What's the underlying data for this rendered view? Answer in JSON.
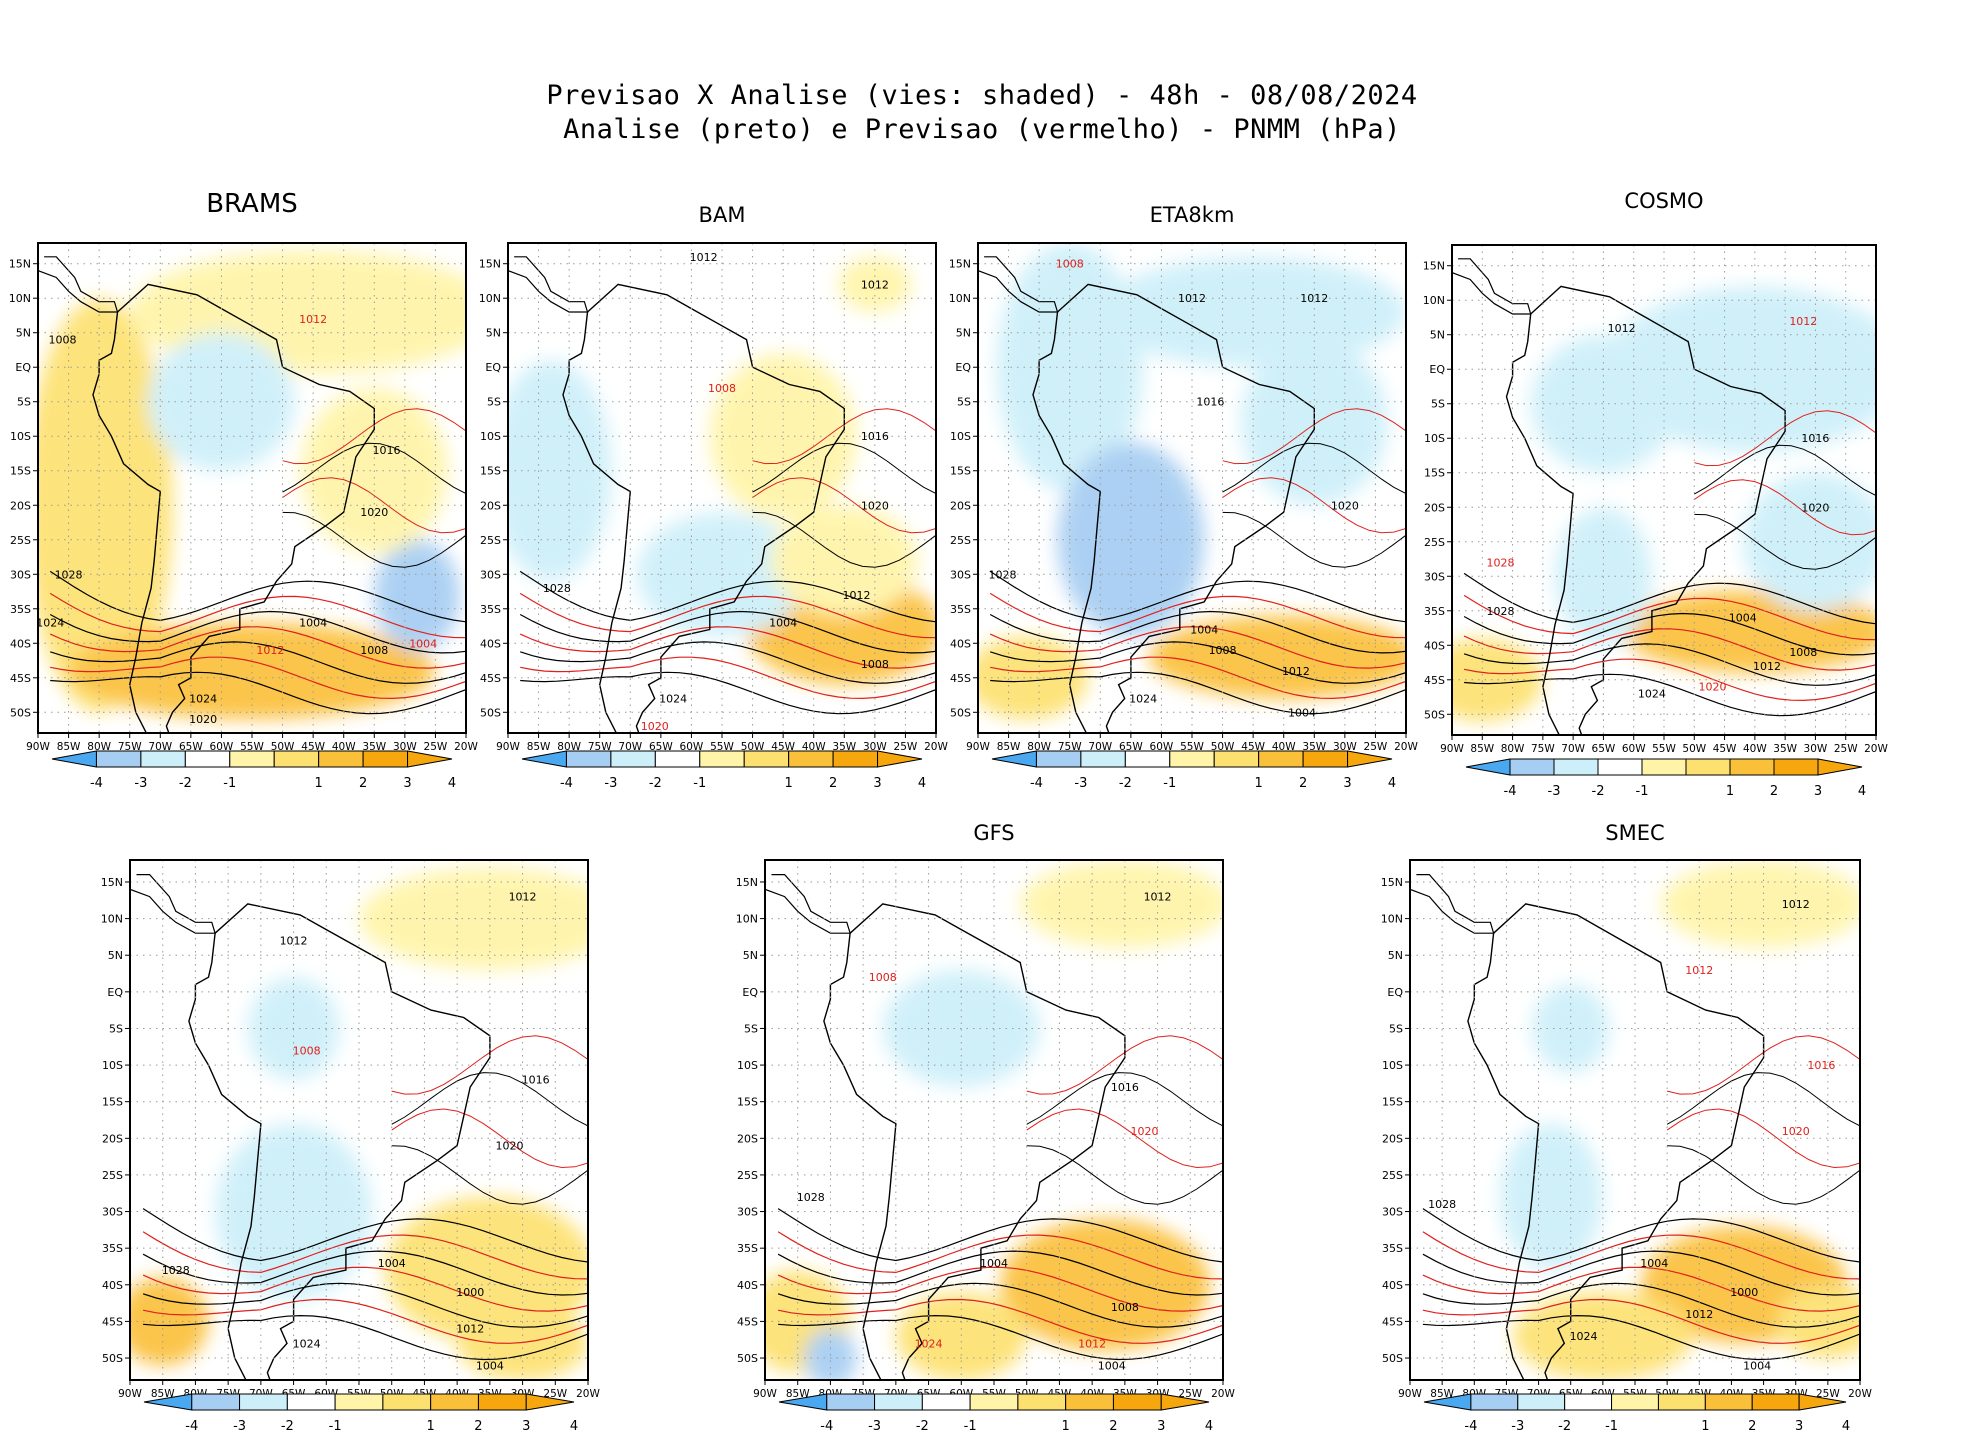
{
  "title": {
    "line1": "Previsao X Analise (vies: shaded) - 48h - 08/08/2024",
    "line2": "Analise (preto) e Previsao (vermelho) - PNMM (hPa)"
  },
  "axes": {
    "lon_labels": [
      "90W",
      "85W",
      "80W",
      "75W",
      "70W",
      "65W",
      "60W",
      "55W",
      "50W",
      "45W",
      "40W",
      "35W",
      "30W",
      "25W",
      "20W"
    ],
    "lat_labels": [
      "15N",
      "10N",
      "5N",
      "EQ",
      "5S",
      "10S",
      "15S",
      "20S",
      "25S",
      "30S",
      "35S",
      "40S",
      "45S",
      "50S"
    ],
    "lon_range": [
      -90,
      -20
    ],
    "lat_range": [
      -53,
      18
    ]
  },
  "colorbar": {
    "labels": [
      "-4",
      "-3",
      "-2",
      "-1",
      "1",
      "2",
      "3",
      "4"
    ],
    "colors": [
      "#4aa8f0",
      "#a6cdf2",
      "#cdeff9",
      "#ffffff",
      "#fff4a8",
      "#fde170",
      "#fbc03a",
      "#f7a70e"
    ]
  },
  "colors": {
    "analysis": "#000000",
    "forecast": "#e0201c",
    "grid": "#9a9a9a"
  },
  "panels": [
    {
      "name": "BRAMS",
      "blobs": [
        {
          "lon": -80,
          "lat": -20,
          "rx": 12,
          "ry": 30,
          "c": 2
        },
        {
          "lon": -45,
          "lat": 8,
          "rx": 30,
          "ry": 9,
          "c": 1
        },
        {
          "lon": -55,
          "lat": -44,
          "rx": 30,
          "ry": 7,
          "c": 3
        },
        {
          "lon": -60,
          "lat": -5,
          "rx": 12,
          "ry": 10,
          "c": -2
        },
        {
          "lon": -28,
          "lat": -33,
          "rx": 7,
          "ry": 8,
          "c": -3
        },
        {
          "lon": -35,
          "lat": -15,
          "rx": 12,
          "ry": 12,
          "c": 1
        }
      ],
      "labels": [
        {
          "t": "1008",
          "lon": -86,
          "lat": 4,
          "c": "a"
        },
        {
          "t": "1012",
          "lon": -45,
          "lat": 7,
          "c": "f"
        },
        {
          "t": "1016",
          "lon": -33,
          "lat": -12,
          "c": "a"
        },
        {
          "t": "1020",
          "lon": -35,
          "lat": -21,
          "c": "a"
        },
        {
          "t": "1028",
          "lon": -85,
          "lat": -30,
          "c": "a"
        },
        {
          "t": "1024",
          "lon": -88,
          "lat": -37,
          "c": "a"
        },
        {
          "t": "1004",
          "lon": -45,
          "lat": -37,
          "c": "a"
        },
        {
          "t": "1008",
          "lon": -35,
          "lat": -41,
          "c": "a"
        },
        {
          "t": "1012",
          "lon": -52,
          "lat": -41,
          "c": "f"
        },
        {
          "t": "1024",
          "lon": -63,
          "lat": -48,
          "c": "a"
        },
        {
          "t": "1020",
          "lon": -63,
          "lat": -51,
          "c": "a"
        },
        {
          "t": "1004",
          "lon": -27,
          "lat": -40,
          "c": "f"
        }
      ]
    },
    {
      "name": "BAM",
      "blobs": [
        {
          "lon": -83,
          "lat": -15,
          "rx": 10,
          "ry": 16,
          "c": -1
        },
        {
          "lon": -35,
          "lat": -38,
          "rx": 16,
          "ry": 8,
          "c": 3
        },
        {
          "lon": -55,
          "lat": -30,
          "rx": 14,
          "ry": 9,
          "c": -2
        },
        {
          "lon": -45,
          "lat": -10,
          "rx": 12,
          "ry": 12,
          "c": 1
        },
        {
          "lon": -30,
          "lat": 12,
          "rx": 6,
          "ry": 4,
          "c": 1
        },
        {
          "lon": -35,
          "lat": -28,
          "rx": 12,
          "ry": 8,
          "c": 1
        }
      ],
      "labels": [
        {
          "t": "1012",
          "lon": -58,
          "lat": 16,
          "c": "a"
        },
        {
          "t": "1012",
          "lon": -30,
          "lat": 12,
          "c": "a"
        },
        {
          "t": "1008",
          "lon": -55,
          "lat": -3,
          "c": "f"
        },
        {
          "t": "1016",
          "lon": -30,
          "lat": -10,
          "c": "a"
        },
        {
          "t": "1020",
          "lon": -30,
          "lat": -20,
          "c": "a"
        },
        {
          "t": "1028",
          "lon": -82,
          "lat": -32,
          "c": "a"
        },
        {
          "t": "1004",
          "lon": -45,
          "lat": -37,
          "c": "a"
        },
        {
          "t": "1008",
          "lon": -30,
          "lat": -43,
          "c": "a"
        },
        {
          "t": "1012",
          "lon": -33,
          "lat": -33,
          "c": "a"
        },
        {
          "t": "1024",
          "lon": -63,
          "lat": -48,
          "c": "a"
        },
        {
          "t": "1020",
          "lon": -66,
          "lat": -52,
          "c": "f"
        }
      ]
    },
    {
      "name": "ETA8km",
      "blobs": [
        {
          "lon": -75,
          "lat": 0,
          "rx": 12,
          "ry": 18,
          "c": -2
        },
        {
          "lon": -65,
          "lat": -25,
          "rx": 12,
          "ry": 14,
          "c": -3
        },
        {
          "lon": -40,
          "lat": -42,
          "rx": 22,
          "ry": 6,
          "c": 3
        },
        {
          "lon": -82,
          "lat": -45,
          "rx": 10,
          "ry": 6,
          "c": 2
        },
        {
          "lon": -45,
          "lat": 8,
          "rx": 25,
          "ry": 8,
          "c": -1
        },
        {
          "lon": -35,
          "lat": -8,
          "rx": 12,
          "ry": 12,
          "c": -1
        }
      ],
      "labels": [
        {
          "t": "1008",
          "lon": -75,
          "lat": 15,
          "c": "f"
        },
        {
          "t": "1012",
          "lon": -55,
          "lat": 10,
          "c": "a"
        },
        {
          "t": "1012",
          "lon": -35,
          "lat": 10,
          "c": "a"
        },
        {
          "t": "1016",
          "lon": -52,
          "lat": -5,
          "c": "a"
        },
        {
          "t": "1020",
          "lon": -30,
          "lat": -20,
          "c": "a"
        },
        {
          "t": "1028",
          "lon": -86,
          "lat": -30,
          "c": "a"
        },
        {
          "t": "1004",
          "lon": -53,
          "lat": -38,
          "c": "a"
        },
        {
          "t": "1008",
          "lon": -50,
          "lat": -41,
          "c": "a"
        },
        {
          "t": "1012",
          "lon": -38,
          "lat": -44,
          "c": "a"
        },
        {
          "t": "1024",
          "lon": -63,
          "lat": -48,
          "c": "a"
        },
        {
          "t": "1004",
          "lon": -37,
          "lat": -50,
          "c": "a"
        }
      ]
    },
    {
      "name": "COSMO",
      "blobs": [
        {
          "lon": -65,
          "lat": -5,
          "rx": 12,
          "ry": 10,
          "c": -2
        },
        {
          "lon": -40,
          "lat": -38,
          "rx": 22,
          "ry": 6,
          "c": 3
        },
        {
          "lon": -85,
          "lat": -45,
          "rx": 10,
          "ry": 6,
          "c": 2
        },
        {
          "lon": -40,
          "lat": 0,
          "rx": 25,
          "ry": 12,
          "c": -1
        },
        {
          "lon": -30,
          "lat": -25,
          "rx": 12,
          "ry": 10,
          "c": -1
        },
        {
          "lon": -65,
          "lat": -30,
          "rx": 8,
          "ry": 10,
          "c": -2
        }
      ],
      "labels": [
        {
          "t": "1012",
          "lon": -62,
          "lat": 6,
          "c": "a"
        },
        {
          "t": "1012",
          "lon": -32,
          "lat": 7,
          "c": "f"
        },
        {
          "t": "1016",
          "lon": -30,
          "lat": -10,
          "c": "a"
        },
        {
          "t": "1020",
          "lon": -30,
          "lat": -20,
          "c": "a"
        },
        {
          "t": "1028",
          "lon": -82,
          "lat": -28,
          "c": "f"
        },
        {
          "t": "1028",
          "lon": -82,
          "lat": -35,
          "c": "a"
        },
        {
          "t": "1004",
          "lon": -42,
          "lat": -36,
          "c": "a"
        },
        {
          "t": "1008",
          "lon": -32,
          "lat": -41,
          "c": "a"
        },
        {
          "t": "1012",
          "lon": -38,
          "lat": -43,
          "c": "a"
        },
        {
          "t": "1024",
          "lon": -57,
          "lat": -47,
          "c": "a"
        },
        {
          "t": "1020",
          "lon": -47,
          "lat": -46,
          "c": "f"
        }
      ]
    },
    {
      "name": "",
      "blobs": [
        {
          "lon": -65,
          "lat": -30,
          "rx": 12,
          "ry": 12,
          "c": -2
        },
        {
          "lon": -35,
          "lat": -38,
          "rx": 16,
          "ry": 10,
          "c": 2
        },
        {
          "lon": -85,
          "lat": -45,
          "rx": 7,
          "ry": 6,
          "c": 3
        },
        {
          "lon": -35,
          "lat": 10,
          "rx": 20,
          "ry": 7,
          "c": 1
        },
        {
          "lon": -65,
          "lat": -5,
          "rx": 7,
          "ry": 7,
          "c": -1
        },
        {
          "lon": -30,
          "lat": -48,
          "rx": 10,
          "ry": 5,
          "c": 2
        }
      ],
      "labels": [
        {
          "t": "1012",
          "lon": -30,
          "lat": 13,
          "c": "a"
        },
        {
          "t": "1012",
          "lon": -65,
          "lat": 7,
          "c": "a"
        },
        {
          "t": "1008",
          "lon": -63,
          "lat": -8,
          "c": "f"
        },
        {
          "t": "1016",
          "lon": -28,
          "lat": -12,
          "c": "a"
        },
        {
          "t": "1020",
          "lon": -32,
          "lat": -21,
          "c": "a"
        },
        {
          "t": "1028",
          "lon": -83,
          "lat": -38,
          "c": "a"
        },
        {
          "t": "1004",
          "lon": -50,
          "lat": -37,
          "c": "a"
        },
        {
          "t": "1000",
          "lon": -38,
          "lat": -41,
          "c": "a"
        },
        {
          "t": "1012",
          "lon": -38,
          "lat": -46,
          "c": "a"
        },
        {
          "t": "1024",
          "lon": -63,
          "lat": -48,
          "c": "a"
        },
        {
          "t": "1004",
          "lon": -35,
          "lat": -51,
          "c": "a"
        }
      ]
    },
    {
      "name": "GFS",
      "blobs": [
        {
          "lon": -60,
          "lat": -5,
          "rx": 12,
          "ry": 8,
          "c": -1
        },
        {
          "lon": -38,
          "lat": -40,
          "rx": 16,
          "ry": 9,
          "c": 3
        },
        {
          "lon": -85,
          "lat": -45,
          "rx": 8,
          "ry": 7,
          "c": 2
        },
        {
          "lon": -80,
          "lat": -50,
          "rx": 4,
          "ry": 4,
          "c": -3
        },
        {
          "lon": -35,
          "lat": 12,
          "rx": 16,
          "ry": 6,
          "c": 1
        },
        {
          "lon": -60,
          "lat": -47,
          "rx": 10,
          "ry": 6,
          "c": 2
        }
      ],
      "labels": [
        {
          "t": "1012",
          "lon": -30,
          "lat": 13,
          "c": "a"
        },
        {
          "t": "1008",
          "lon": -72,
          "lat": 2,
          "c": "f"
        },
        {
          "t": "1016",
          "lon": -35,
          "lat": -13,
          "c": "a"
        },
        {
          "t": "1020",
          "lon": -32,
          "lat": -19,
          "c": "f"
        },
        {
          "t": "1028",
          "lon": -83,
          "lat": -28,
          "c": "a"
        },
        {
          "t": "1004",
          "lon": -55,
          "lat": -37,
          "c": "a"
        },
        {
          "t": "1008",
          "lon": -35,
          "lat": -43,
          "c": "a"
        },
        {
          "t": "1012",
          "lon": -40,
          "lat": -48,
          "c": "f"
        },
        {
          "t": "1024",
          "lon": -65,
          "lat": -48,
          "c": "f"
        },
        {
          "t": "1004",
          "lon": -37,
          "lat": -51,
          "c": "a"
        }
      ]
    },
    {
      "name": "SMEC",
      "blobs": [
        {
          "lon": -68,
          "lat": -28,
          "rx": 8,
          "ry": 10,
          "c": -2
        },
        {
          "lon": -38,
          "lat": -40,
          "rx": 16,
          "ry": 8,
          "c": 3
        },
        {
          "lon": -60,
          "lat": -47,
          "rx": 14,
          "ry": 6,
          "c": 2
        },
        {
          "lon": -25,
          "lat": -45,
          "rx": 8,
          "ry": 5,
          "c": 2
        },
        {
          "lon": -35,
          "lat": 12,
          "rx": 16,
          "ry": 6,
          "c": 1
        },
        {
          "lon": -65,
          "lat": -5,
          "rx": 6,
          "ry": 6,
          "c": -1
        }
      ],
      "labels": [
        {
          "t": "1012",
          "lon": -30,
          "lat": 12,
          "c": "a"
        },
        {
          "t": "1012",
          "lon": -45,
          "lat": 3,
          "c": "f"
        },
        {
          "t": "1016",
          "lon": -26,
          "lat": -10,
          "c": "f"
        },
        {
          "t": "1020",
          "lon": -30,
          "lat": -19,
          "c": "f"
        },
        {
          "t": "1028",
          "lon": -85,
          "lat": -29,
          "c": "a"
        },
        {
          "t": "1004",
          "lon": -52,
          "lat": -37,
          "c": "a"
        },
        {
          "t": "1000",
          "lon": -38,
          "lat": -41,
          "c": "a"
        },
        {
          "t": "1012",
          "lon": -45,
          "lat": -44,
          "c": "a"
        },
        {
          "t": "1024",
          "lon": -63,
          "lat": -47,
          "c": "a"
        },
        {
          "t": "1004",
          "lon": -36,
          "lat": -51,
          "c": "a"
        }
      ]
    }
  ]
}
